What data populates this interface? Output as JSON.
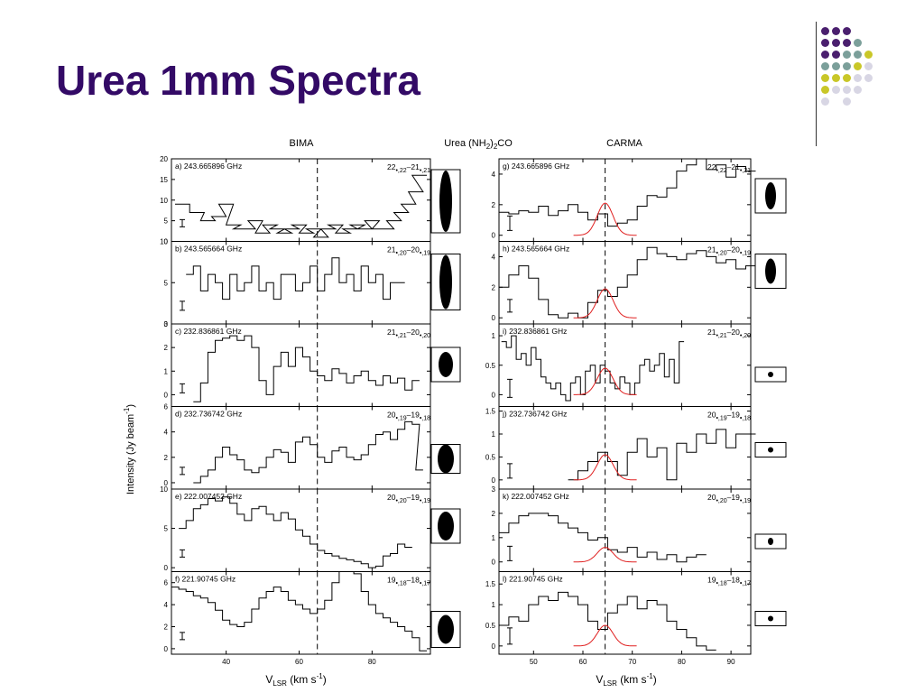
{
  "slide": {
    "title": "Urea 1mm Spectra",
    "accent_color": "#330a66",
    "decor_dot_colors": [
      "#4a1f6e",
      "#7b9f9a",
      "#c9c728",
      "#d8d6e4"
    ]
  },
  "figure": {
    "heading_left": "BIMA",
    "heading_center": "Urea (NH2)2CO",
    "heading_right": "CARMA",
    "xlabel": "VLSR (km s-1)",
    "ylabel": "Intensity (Jy beam-1)",
    "line_color": "#000000",
    "fit_color": "#e02020"
  },
  "chart_data": [
    {
      "type": "line",
      "column": "BIMA",
      "panel": "a",
      "freq": "a) 243.665896 GHz",
      "transition": "22,22-21,21",
      "xlim": [
        25,
        96
      ],
      "ylim": [
        0,
        20
      ],
      "yticks": [
        0,
        5,
        10,
        15,
        20
      ],
      "xticks": [
        40,
        60,
        80
      ],
      "vline": 65,
      "x": [
        28,
        32,
        35,
        38,
        40,
        42,
        44,
        46,
        48,
        50,
        52,
        54,
        56,
        58,
        60,
        62,
        64,
        66,
        68,
        70,
        72,
        74,
        76,
        78,
        80,
        82,
        84,
        86,
        88,
        90,
        92,
        93
      ],
      "values": [
        9,
        7,
        5,
        6,
        9,
        4,
        3,
        3,
        5,
        2,
        4,
        3,
        2,
        3,
        4,
        2,
        3,
        1,
        3,
        4,
        2,
        3,
        4,
        3,
        5,
        3,
        3,
        5,
        7,
        9,
        12,
        16
      ]
    },
    {
      "type": "line",
      "column": "BIMA",
      "panel": "b",
      "freq": "b) 243.565664 GHz",
      "transition": "21,20-20,19",
      "xlim": [
        25,
        96
      ],
      "ylim": [
        0,
        10
      ],
      "yticks": [
        0,
        5,
        10
      ],
      "xticks": [
        40,
        60,
        80
      ],
      "vline": 65,
      "x": [
        30,
        32,
        34,
        36,
        38,
        40,
        42,
        44,
        46,
        48,
        50,
        52,
        54,
        56,
        58,
        60,
        62,
        64,
        66,
        68,
        70,
        72,
        74,
        76,
        78,
        80,
        82,
        84,
        86,
        88
      ],
      "values": [
        6,
        7,
        4,
        6,
        5,
        3,
        6,
        4,
        5,
        7,
        4,
        5,
        3,
        6,
        6,
        4,
        5,
        7,
        4,
        6,
        8,
        5,
        6,
        4,
        7,
        5,
        6,
        3,
        5,
        5
      ]
    },
    {
      "type": "line",
      "column": "BIMA",
      "panel": "c",
      "freq": "c) 232.836861 GHz",
      "transition": "21,21-20,20",
      "xlim": [
        25,
        96
      ],
      "ylim": [
        -0.5,
        3
      ],
      "yticks": [
        0,
        1,
        2,
        3
      ],
      "xticks": [
        40,
        60,
        80
      ],
      "vline": 65,
      "x": [
        32,
        34,
        36,
        38,
        40,
        42,
        44,
        46,
        48,
        50,
        52,
        54,
        56,
        58,
        60,
        62,
        64,
        66,
        68,
        70,
        72,
        74,
        76,
        78,
        80,
        82,
        84,
        86,
        88,
        90,
        92
      ],
      "values": [
        -0.3,
        0.5,
        1.8,
        2.3,
        2.4,
        2.5,
        2.3,
        2.5,
        2.0,
        0.6,
        0.0,
        1.2,
        1.8,
        1.2,
        2.0,
        1.6,
        1.0,
        0.8,
        0.6,
        1.1,
        0.9,
        0.5,
        0.8,
        1.0,
        0.6,
        0.4,
        0.8,
        0.5,
        0.7,
        0.2,
        0.6
      ]
    },
    {
      "type": "line",
      "column": "BIMA",
      "panel": "d",
      "freq": "d) 232.736742 GHz",
      "transition": "20,19-19,18",
      "xlim": [
        25,
        96
      ],
      "ylim": [
        -0.5,
        6
      ],
      "yticks": [
        0,
        2,
        4,
        6
      ],
      "xticks": [
        40,
        60,
        80
      ],
      "vline": 65,
      "x": [
        32,
        34,
        36,
        38,
        40,
        42,
        44,
        46,
        48,
        50,
        52,
        54,
        56,
        58,
        60,
        62,
        64,
        66,
        68,
        70,
        72,
        74,
        76,
        78,
        80,
        82,
        84,
        86,
        88,
        90,
        92,
        93
      ],
      "values": [
        0,
        0.5,
        1,
        2,
        2.8,
        2.2,
        1.8,
        1.0,
        0.8,
        1.2,
        2.0,
        2.6,
        2.4,
        1.6,
        3.2,
        3.6,
        3.0,
        2.0,
        1.6,
        2.5,
        2.8,
        2.0,
        1.8,
        2.2,
        3.0,
        3.8,
        4.0,
        3.4,
        4.2,
        4.8,
        4.6,
        1.0
      ]
    },
    {
      "type": "line",
      "column": "BIMA",
      "panel": "e",
      "freq": "e) 222.007452 GHz",
      "transition": "20,20-19,19",
      "xlim": [
        25,
        96
      ],
      "ylim": [
        -0.5,
        10
      ],
      "yticks": [
        0,
        5,
        10
      ],
      "xticks": [
        40,
        60,
        80
      ],
      "vline": 65,
      "x": [
        28,
        30,
        32,
        34,
        36,
        38,
        40,
        42,
        44,
        46,
        48,
        50,
        52,
        54,
        56,
        58,
        60,
        62,
        64,
        66,
        68,
        70,
        72,
        74,
        76,
        78,
        80,
        82,
        84,
        86,
        88,
        90
      ],
      "values": [
        5,
        6,
        7.5,
        8,
        8.8,
        8.5,
        9,
        8.2,
        6.8,
        6,
        7.5,
        7.8,
        6.8,
        6,
        7,
        6.2,
        4.8,
        4,
        3,
        2.2,
        1.8,
        1.5,
        1.2,
        1,
        0.8,
        0.5,
        0,
        0.2,
        1.5,
        1.8,
        3,
        2.6
      ]
    },
    {
      "type": "line",
      "column": "BIMA",
      "panel": "f",
      "freq": "f) 221.90745 GHz",
      "transition": "19,18-18,17",
      "xlim": [
        25,
        96
      ],
      "ylim": [
        -0.5,
        7
      ],
      "yticks": [
        0,
        2,
        4,
        6
      ],
      "xticks": [
        40,
        60,
        80
      ],
      "vline": 65,
      "x": [
        26,
        28,
        30,
        32,
        34,
        36,
        38,
        40,
        42,
        44,
        46,
        48,
        50,
        52,
        54,
        56,
        58,
        60,
        62,
        64,
        66,
        68,
        70,
        72,
        74,
        76,
        78,
        80,
        82,
        84,
        86,
        88,
        90,
        92,
        94
      ],
      "values": [
        5.6,
        5.4,
        5.2,
        4.8,
        4.6,
        4.2,
        3.5,
        2.6,
        2.2,
        2.0,
        2.4,
        3.6,
        4.6,
        5.2,
        5.6,
        5.2,
        4.4,
        4.0,
        3.6,
        3.2,
        3.6,
        4.4,
        6.0,
        7.0,
        7.2,
        6.8,
        5.2,
        4.0,
        3.2,
        2.8,
        2.4,
        2.0,
        1.6,
        1.0,
        -0.2
      ]
    },
    {
      "type": "line",
      "column": "CARMA",
      "panel": "g",
      "freq": "g) 243.665896 GHz",
      "transition": "22,22-21,21",
      "xlim": [
        43,
        94
      ],
      "ylim": [
        -0.4,
        5
      ],
      "yticks": [
        0,
        2,
        4
      ],
      "xticks": [
        50,
        60,
        70,
        80,
        90
      ],
      "vline": 64.5,
      "fit": {
        "center": 64.5,
        "peak": 2.1,
        "width": 1.6
      },
      "x": [
        44,
        46,
        48,
        50,
        52,
        54,
        56,
        58,
        60,
        62,
        64,
        66,
        68,
        70,
        72,
        74,
        76,
        78,
        80,
        82,
        84,
        86,
        88,
        90,
        92,
        94
      ],
      "values": [
        1.5,
        1.4,
        1.6,
        1.5,
        1.9,
        1.3,
        1.6,
        2.0,
        1.5,
        1.0,
        1.4,
        0.6,
        0.8,
        1.0,
        1.9,
        2.6,
        2.5,
        3.1,
        4.2,
        4.6,
        5.0,
        4.3,
        4.6,
        3.8,
        4.5,
        4.2
      ]
    },
    {
      "type": "line",
      "column": "CARMA",
      "panel": "h",
      "freq": "h) 243.565664 GHz",
      "transition": "21,20-20,19",
      "xlim": [
        43,
        94
      ],
      "ylim": [
        -0.4,
        5
      ],
      "yticks": [
        0,
        2,
        4
      ],
      "xticks": [
        50,
        60,
        70,
        80,
        90
      ],
      "vline": 64.5,
      "fit": {
        "center": 64.5,
        "peak": 1.9,
        "width": 1.6
      },
      "x": [
        44,
        46,
        48,
        50,
        52,
        54,
        56,
        58,
        60,
        62,
        64,
        66,
        68,
        70,
        72,
        74,
        76,
        78,
        80,
        82,
        84,
        86,
        88,
        90,
        92,
        94
      ],
      "values": [
        2.0,
        2.8,
        3.4,
        2.6,
        1.2,
        0.2,
        0.0,
        0.3,
        0.0,
        1.0,
        1.8,
        1.4,
        2.0,
        2.8,
        3.8,
        4.6,
        4.2,
        4.0,
        3.8,
        4.2,
        4.4,
        4.0,
        3.6,
        3.8,
        3.2,
        3.4
      ]
    },
    {
      "type": "line",
      "column": "CARMA",
      "panel": "i",
      "freq": "i) 232.836861 GHz",
      "transition": "21,21-20,20",
      "xlim": [
        43,
        94
      ],
      "ylim": [
        -0.2,
        1.2
      ],
      "yticks": [
        0,
        0.5,
        1
      ],
      "xticks": [
        50,
        60,
        70,
        80,
        90
      ],
      "vline": 64.5,
      "fit": {
        "center": 64.5,
        "peak": 0.45,
        "width": 1.6
      },
      "x": [
        44,
        45,
        46,
        47,
        48,
        49,
        50,
        51,
        52,
        53,
        54,
        55,
        56,
        57,
        58,
        59,
        60,
        61,
        62,
        63,
        64,
        65,
        66,
        67,
        68,
        69,
        70,
        71,
        72,
        73,
        74,
        75,
        76,
        77,
        78,
        79,
        80
      ],
      "values": [
        0.9,
        0.8,
        1.0,
        0.6,
        0.7,
        0.5,
        0.8,
        0.6,
        0.3,
        0.2,
        0.1,
        0.2,
        0.0,
        -0.1,
        0.2,
        0.3,
        0.0,
        0.4,
        0.5,
        0.2,
        0.5,
        0.4,
        0.2,
        0.1,
        0.3,
        0.2,
        0.0,
        0.2,
        0.5,
        0.6,
        0.4,
        0.5,
        0.7,
        0.3,
        0.6,
        0.2,
        0.9
      ]
    },
    {
      "type": "line",
      "column": "CARMA",
      "panel": "j",
      "freq": "j) 232.736742 GHz",
      "transition": "20,19-19,18",
      "xlim": [
        43,
        94
      ],
      "ylim": [
        -0.2,
        1.6
      ],
      "yticks": [
        0,
        0.5,
        1,
        1.5
      ],
      "xticks": [
        50,
        60,
        70,
        80,
        90
      ],
      "vline": 64.5,
      "fit": {
        "center": 64.5,
        "peak": 0.55,
        "width": 1.6
      },
      "x": [
        58,
        60,
        62,
        64,
        66,
        68,
        70,
        72,
        74,
        76,
        78,
        80,
        82,
        84,
        86,
        88,
        90,
        92,
        94
      ],
      "values": [
        0.0,
        0.2,
        0.4,
        0.6,
        0.4,
        0.1,
        0.6,
        0.9,
        0.5,
        0.7,
        0.0,
        0.8,
        0.6,
        1.0,
        0.8,
        1.1,
        0.7,
        1.0,
        1.0
      ]
    },
    {
      "type": "line",
      "column": "CARMA",
      "panel": "k",
      "freq": "k) 222.007452 GHz",
      "transition": "20,20-19,19",
      "xlim": [
        43,
        94
      ],
      "ylim": [
        -0.4,
        3
      ],
      "yticks": [
        0,
        1,
        2,
        3
      ],
      "xticks": [
        50,
        60,
        70,
        80,
        90
      ],
      "vline": 64.5,
      "fit": {
        "center": 64.5,
        "peak": 0.6,
        "width": 1.6
      },
      "x": [
        44,
        46,
        48,
        50,
        52,
        54,
        56,
        58,
        60,
        62,
        64,
        66,
        68,
        70,
        72,
        74,
        76,
        78,
        80,
        82,
        84
      ],
      "values": [
        1.2,
        1.6,
        1.9,
        2.0,
        2.0,
        1.9,
        1.6,
        1.4,
        1.2,
        0.9,
        1.0,
        0.5,
        0.4,
        0.6,
        0.2,
        0.4,
        0.1,
        0.3,
        0.0,
        0.2,
        0.3
      ]
    },
    {
      "type": "line",
      "column": "CARMA",
      "panel": "l",
      "freq": "l) 221.90745 GHz",
      "transition": "19,18-18,17",
      "xlim": [
        43,
        94
      ],
      "ylim": [
        -0.2,
        1.8
      ],
      "yticks": [
        0,
        0.5,
        1,
        1.5
      ],
      "xticks": [
        50,
        60,
        70,
        80,
        90
      ],
      "vline": 64.5,
      "fit": {
        "center": 64.5,
        "peak": 0.5,
        "width": 1.6
      },
      "x": [
        44,
        46,
        48,
        50,
        52,
        54,
        56,
        58,
        60,
        62,
        64,
        66,
        68,
        70,
        72,
        74,
        76,
        78,
        80,
        82,
        84,
        86
      ],
      "values": [
        0.5,
        0.7,
        0.6,
        1.0,
        1.2,
        1.1,
        1.3,
        1.2,
        1.0,
        0.6,
        0.4,
        0.8,
        1.0,
        1.2,
        0.9,
        1.1,
        1.0,
        0.6,
        0.4,
        0.2,
        0.0,
        -0.1
      ]
    }
  ]
}
